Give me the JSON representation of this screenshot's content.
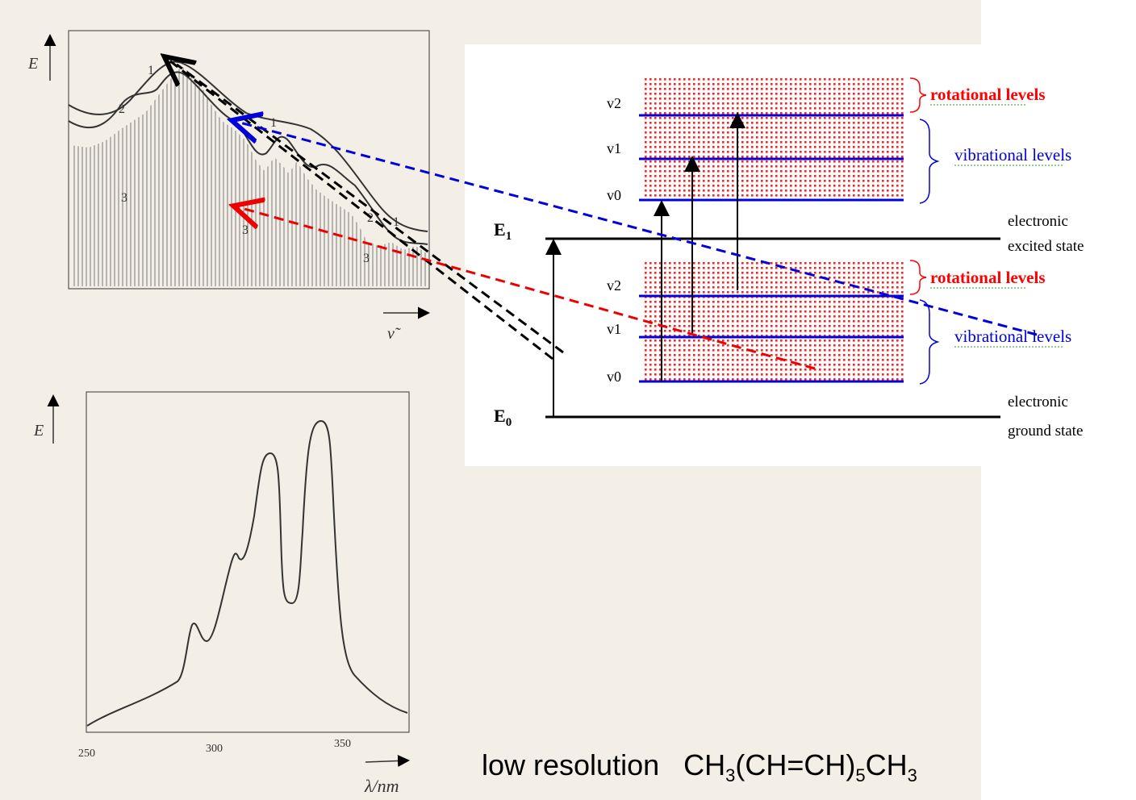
{
  "top_spectrum": {
    "y_axis_label": "E",
    "x_axis_label": "ν̃",
    "curve_labels": [
      "1",
      "2",
      "3"
    ]
  },
  "bottom_spectrum": {
    "y_axis_label": "E",
    "x_axis_label": "λ/nm",
    "x_ticks": [
      "250",
      "300",
      "350"
    ]
  },
  "energy_diagram": {
    "excited_state_symbol": "E",
    "excited_state_subscript": "1",
    "ground_state_symbol": "E",
    "ground_state_subscript": "0",
    "vibrational_level_names": [
      "v2",
      "v1",
      "v0"
    ],
    "rotational_label": "rotational levels",
    "vibrational_label": "vibrational levels",
    "excited_state_label_line1": "electronic",
    "excited_state_label_line2": "excited state",
    "ground_state_label_line1": "electronic",
    "ground_state_label_line2": "ground state",
    "colors": {
      "vibrational": "#0000dd",
      "rotational": "#ff0000",
      "black": "#000000"
    }
  },
  "caption": {
    "resolution_text": "low resolution",
    "formula_parts": [
      "CH",
      "3",
      "(CH=CH)",
      "5",
      "CH",
      "3"
    ]
  }
}
